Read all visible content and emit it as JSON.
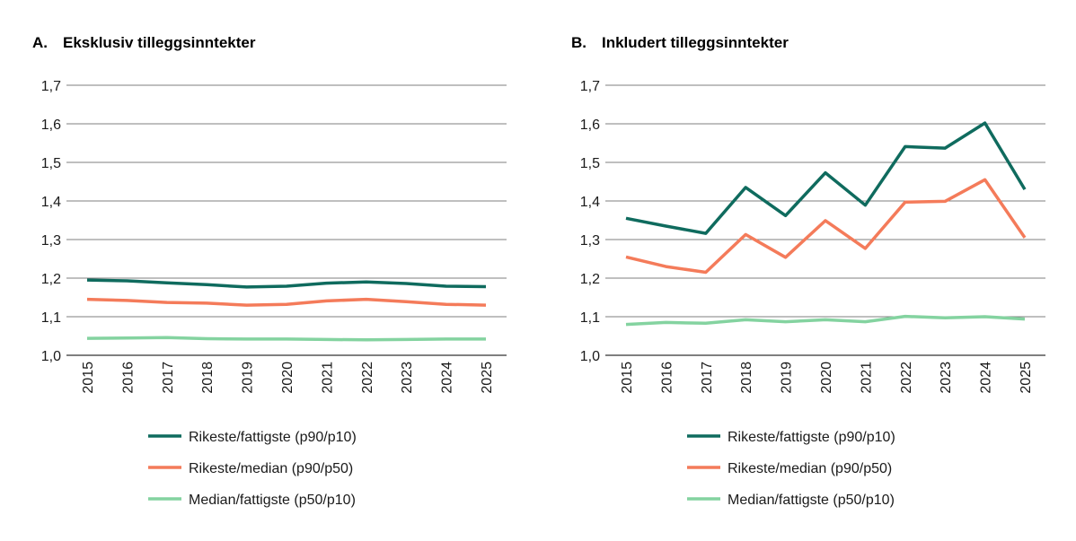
{
  "chart_data": [
    {
      "type": "line",
      "panel_letter": "A.",
      "title": "Eksklusiv tilleggsinntekter",
      "x": [
        "2015",
        "2016",
        "2017",
        "2018",
        "2019",
        "2020",
        "2021",
        "2022",
        "2023",
        "2024",
        "2025"
      ],
      "ylim": [
        1.0,
        1.7
      ],
      "yticks": [
        "1,0",
        "1,1",
        "1,2",
        "1,3",
        "1,4",
        "1,5",
        "1,6",
        "1,7"
      ],
      "grid": true,
      "legend_position": "bottom",
      "series": [
        {
          "name": "Rikeste/fattigste (p90/p10)",
          "color": "#0f6b5e",
          "values": [
            1.195,
            1.193,
            1.188,
            1.183,
            1.177,
            1.179,
            1.187,
            1.19,
            1.186,
            1.179,
            1.178
          ]
        },
        {
          "name": "Rikeste/median (p90/p50)",
          "color": "#f47b5a",
          "values": [
            1.145,
            1.142,
            1.137,
            1.135,
            1.13,
            1.132,
            1.141,
            1.145,
            1.139,
            1.132,
            1.13
          ]
        },
        {
          "name": "Median/fattigste (p50/p10)",
          "color": "#84d3a0",
          "values": [
            1.044,
            1.045,
            1.046,
            1.043,
            1.042,
            1.042,
            1.041,
            1.04,
            1.041,
            1.042,
            1.042
          ]
        }
      ]
    },
    {
      "type": "line",
      "panel_letter": "B.",
      "title": "Inkludert tilleggsinntekter",
      "x": [
        "2015",
        "2016",
        "2017",
        "2018",
        "2019",
        "2020",
        "2021",
        "2022",
        "2023",
        "2024",
        "2025"
      ],
      "ylim": [
        1.0,
        1.7
      ],
      "yticks": [
        "1,0",
        "1,1",
        "1,2",
        "1,3",
        "1,4",
        "1,5",
        "1,6",
        "1,7"
      ],
      "grid": true,
      "legend_position": "bottom",
      "series": [
        {
          "name": "Rikeste/fattigste (p90/p10)",
          "color": "#0f6b5e",
          "values": [
            1.355,
            1.335,
            1.316,
            1.435,
            1.362,
            1.473,
            1.389,
            1.541,
            1.537,
            1.602,
            1.43
          ]
        },
        {
          "name": "Rikeste/median (p90/p50)",
          "color": "#f47b5a",
          "values": [
            1.255,
            1.23,
            1.215,
            1.313,
            1.254,
            1.349,
            1.277,
            1.397,
            1.399,
            1.455,
            1.305
          ]
        },
        {
          "name": "Median/fattigste (p50/p10)",
          "color": "#84d3a0",
          "values": [
            1.08,
            1.085,
            1.083,
            1.092,
            1.087,
            1.092,
            1.087,
            1.101,
            1.097,
            1.1,
            1.094
          ]
        }
      ]
    }
  ]
}
